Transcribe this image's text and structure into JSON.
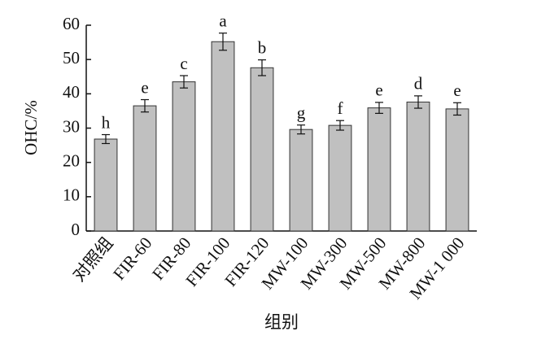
{
  "chart_data": {
    "type": "bar",
    "x_label": "组别",
    "y_label": "OHC/%",
    "categories": [
      "对照组",
      "FIR-60",
      "FIR-80",
      "FIR-100",
      "FIR-120",
      "MW-100",
      "MW-300",
      "MW-500",
      "MW-800",
      "MW-1 000"
    ],
    "values": [
      26.8,
      36.5,
      43.5,
      55.2,
      47.6,
      29.6,
      30.8,
      35.9,
      37.6,
      35.6
    ],
    "errors": [
      1.3,
      1.8,
      1.8,
      2.5,
      2.3,
      1.3,
      1.4,
      1.6,
      1.8,
      1.8
    ],
    "letters": [
      "h",
      "e",
      "c",
      "a",
      "b",
      "g",
      "f",
      "e",
      "d",
      "e"
    ],
    "color": "#c0c0c0",
    "ylim": [
      0,
      60
    ],
    "yticks": [
      0,
      10,
      20,
      30,
      40,
      50,
      60
    ]
  }
}
